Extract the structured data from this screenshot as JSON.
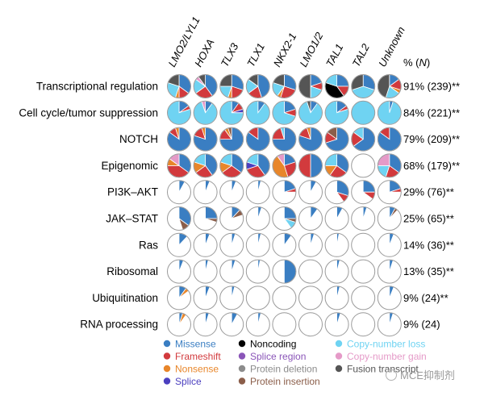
{
  "chart_data": {
    "type": "pie",
    "column_headers": [
      "LMO2/LYL1",
      "HOXA",
      "TLX3",
      "TLX1",
      "NKX2-1",
      "LMO1/2",
      "TAL1",
      "TAL2",
      "Unknown"
    ],
    "percent_header": "% (N)",
    "rows": [
      {
        "label": "Transcriptional regulation",
        "pct": "91% (239)**"
      },
      {
        "label": "Cell cycle/tumor suppression",
        "pct": "84% (221)**"
      },
      {
        "label": "NOTCH",
        "pct": "79% (209)**"
      },
      {
        "label": "Epigenomic",
        "pct": "68% (179)**"
      },
      {
        "label": "PI3K–AKT",
        "pct": "29% (76)**"
      },
      {
        "label": "JAK–STAT",
        "pct": "25% (65)**"
      },
      {
        "label": "Ras",
        "pct": "14% (36)**"
      },
      {
        "label": "Ribosomal",
        "pct": "13% (35)**"
      },
      {
        "label": "Ubiquitination",
        "pct": "9% (24)**"
      },
      {
        "label": "RNA processing",
        "pct": "9% (24)"
      }
    ],
    "legend": [
      {
        "key": "missense",
        "label": "Missense",
        "color": "#3a7ec2"
      },
      {
        "key": "frameshift",
        "label": "Frameshift",
        "color": "#d23a3d"
      },
      {
        "key": "nonsense",
        "label": "Nonsense",
        "color": "#e8862a"
      },
      {
        "key": "splice",
        "label": "Splice",
        "color": "#4b3fbf"
      },
      {
        "key": "noncoding",
        "label": "Noncoding",
        "color": "#000000"
      },
      {
        "key": "splice_region",
        "label": "Splice region",
        "color": "#8a55b8"
      },
      {
        "key": "protein_deletion",
        "label": "Protein deletion",
        "color": "#8c8c8c"
      },
      {
        "key": "protein_insertion",
        "label": "Protein insertion",
        "color": "#8b5e4a"
      },
      {
        "key": "cn_loss",
        "label": "Copy-number loss",
        "color": "#6fd3f2"
      },
      {
        "key": "cn_gain",
        "label": "Copy-number gain",
        "color": "#e59ac8"
      },
      {
        "key": "fusion",
        "label": "Fusion transcript",
        "color": "#555555"
      }
    ],
    "pies": [
      [
        {
          "missense": 0.35,
          "frameshift": 0.15,
          "nonsense": 0.05,
          "cn_loss": 0.25,
          "fusion": 0.2
        },
        {
          "missense": 0.4,
          "frameshift": 0.25,
          "cn_loss": 0.2,
          "fusion": 0.1,
          "cn_gain": 0.05
        },
        {
          "missense": 0.3,
          "frameshift": 0.2,
          "nonsense": 0.05,
          "cn_loss": 0.2,
          "fusion": 0.25
        },
        {
          "missense": 0.45,
          "frameshift": 0.2,
          "cn_loss": 0.2,
          "fusion": 0.15
        },
        {
          "missense": 0.3,
          "frameshift": 0.25,
          "nonsense": 0.05,
          "cn_loss": 0.2,
          "fusion": 0.2
        },
        {
          "missense": 0.2,
          "frameshift": 0.1,
          "cn_loss": 0.2,
          "fusion": 0.5
        },
        {
          "missense": 0.25,
          "frameshift": 0.15,
          "noncoding": 0.4,
          "cn_loss": 0.2
        },
        {
          "missense": 0.3,
          "fusion": 0.3,
          "cn_loss": 0.4
        },
        {
          "missense": 0.15,
          "frameshift": 0.15,
          "nonsense": 0.05,
          "cn_loss": 0.2,
          "fusion": 0.45
        }
      ],
      [
        {
          "cn_loss": 0.8,
          "missense": 0.15,
          "frameshift": 0.05
        },
        {
          "cn_loss": 0.85,
          "missense": 0.1,
          "cn_gain": 0.05
        },
        {
          "cn_loss": 0.75,
          "missense": 0.1,
          "frameshift": 0.1,
          "splice": 0.05
        },
        {
          "cn_loss": 0.9,
          "missense": 0.1
        },
        {
          "cn_loss": 0.7,
          "missense": 0.2,
          "frameshift": 0.1
        },
        {
          "cn_loss": 0.85,
          "missense": 0.1,
          "fusion": 0.05
        },
        {
          "cn_loss": 0.8,
          "missense": 0.15,
          "frameshift": 0.05
        },
        {
          "cn_loss": 1.0
        },
        {
          "cn_loss": 0.95,
          "missense": 0.05
        }
      ],
      [
        {
          "missense": 0.85,
          "frameshift": 0.1,
          "nonsense": 0.05
        },
        {
          "missense": 0.8,
          "frameshift": 0.15,
          "nonsense": 0.05
        },
        {
          "missense": 0.75,
          "frameshift": 0.15,
          "protein_insertion": 0.05,
          "nonsense": 0.05
        },
        {
          "missense": 0.85,
          "frameshift": 0.15
        },
        {
          "missense": 0.75,
          "frameshift": 0.2,
          "cn_loss": 0.05
        },
        {
          "missense": 0.8,
          "frameshift": 0.15,
          "nonsense": 0.05
        },
        {
          "missense": 0.7,
          "frameshift": 0.15,
          "protein_insertion": 0.15
        },
        {
          "missense": 0.65,
          "frameshift": 0.2,
          "cn_loss": 0.15
        },
        {
          "missense": 0.85,
          "frameshift": 0.15
        }
      ],
      [
        {
          "frameshift": 0.4,
          "missense": 0.35,
          "nonsense": 0.1,
          "cn_gain": 0.15
        },
        {
          "missense": 0.4,
          "frameshift": 0.25,
          "cn_loss": 0.2,
          "nonsense": 0.15
        },
        {
          "missense": 0.35,
          "frameshift": 0.3,
          "cn_loss": 0.2,
          "nonsense": 0.15
        },
        {
          "missense": 0.4,
          "frameshift": 0.3,
          "cn_loss": 0.2,
          "splice": 0.1
        },
        {
          "nonsense": 0.45,
          "frameshift": 0.25,
          "missense": 0.2,
          "cn_gain": 0.1
        },
        {
          "missense": 0.5,
          "frameshift": 0.5
        },
        {
          "missense": 0.35,
          "frameshift": 0.25,
          "nonsense": 0.15,
          "cn_loss": 0.25
        },
        {},
        {
          "missense": 0.35,
          "frameshift": 0.2,
          "cn_gain": 0.25,
          "cn_loss": 0.2
        }
      ],
      [
        {
          "missense": 0.08
        },
        {
          "missense": 0.06
        },
        {
          "missense": 0.06
        },
        {
          "missense": 0.04
        },
        {
          "missense": 0.2,
          "frameshift": 0.05
        },
        {
          "missense": 0.08
        },
        {
          "missense": 0.3,
          "frameshift": 0.1
        },
        {
          "missense": 0.25,
          "frameshift": 0.1
        },
        {
          "missense": 0.2,
          "frameshift": 0.05
        }
      ],
      [
        {
          "missense": 0.35,
          "protein_insertion": 0.1
        },
        {
          "missense": 0.25,
          "protein_insertion": 0.05
        },
        {
          "missense": 0.12,
          "protein_insertion": 0.08
        },
        {
          "missense": 0.05
        },
        {
          "missense": 0.25,
          "cn_loss": 0.1,
          "protein_insertion": 0.05
        },
        {
          "missense": 0.1
        },
        {
          "missense": 0.08
        },
        {
          "missense": 0.05
        },
        {
          "missense": 0.08,
          "protein_insertion": 0.04
        }
      ],
      [
        {
          "missense": 0.12
        },
        {
          "missense": 0.06
        },
        {
          "missense": 0.05
        },
        {
          "missense": 0.04
        },
        {
          "missense": 0.1
        },
        {
          "missense": 0.05
        },
        {
          "missense": 0.03
        },
        {},
        {
          "missense": 0.06
        }
      ],
      [
        {
          "missense": 0.06
        },
        {
          "missense": 0.04
        },
        {
          "missense": 0.05
        },
        {
          "missense": 0.03
        },
        {
          "missense": 0.5
        },
        {},
        {
          "missense": 0.04
        },
        {},
        {
          "missense": 0.05
        }
      ],
      [
        {
          "missense": 0.1,
          "nonsense": 0.05
        },
        {
          "missense": 0.06
        },
        {
          "missense": 0.04
        },
        {},
        {},
        {},
        {
          "missense": 0.04
        },
        {},
        {
          "missense": 0.06
        }
      ],
      [
        {
          "missense": 0.05,
          "nonsense": 0.05
        },
        {
          "missense": 0.05
        },
        {
          "missense": 0.08
        },
        {
          "missense": 0.04
        },
        {},
        {},
        {
          "missense": 0.05
        },
        {},
        {
          "missense": 0.05
        }
      ]
    ]
  },
  "watermark": "MCE抑制剂"
}
